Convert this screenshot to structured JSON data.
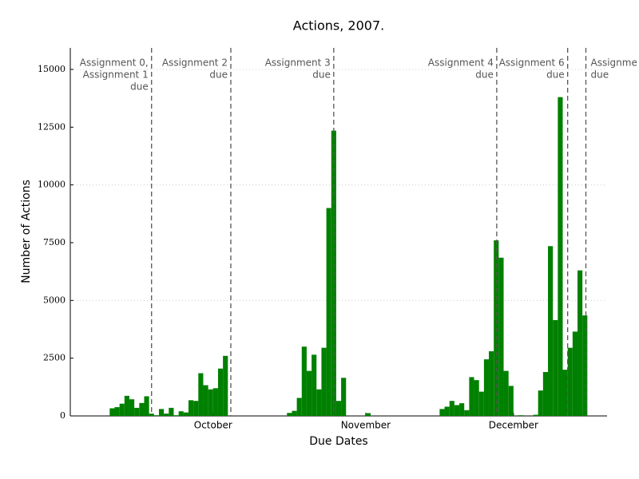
{
  "chart_data": {
    "type": "bar",
    "title": "Actions, 2007.",
    "x_label": "Due Dates",
    "y_label": "Number of Actions",
    "x": [
      253,
      254,
      255,
      256,
      257,
      258,
      259,
      260,
      261,
      262,
      263,
      264,
      265,
      266,
      267,
      268,
      269,
      270,
      271,
      272,
      273,
      274,
      275,
      276,
      289,
      290,
      291,
      292,
      293,
      294,
      295,
      296,
      297,
      298,
      299,
      300,
      305,
      320,
      321,
      322,
      323,
      324,
      325,
      326,
      327,
      328,
      329,
      330,
      331,
      332,
      333,
      334,
      336,
      339,
      340,
      341,
      342,
      343,
      344,
      345,
      346,
      347,
      348,
      349
    ],
    "values": [
      330,
      380,
      530,
      870,
      720,
      350,
      560,
      850,
      100,
      30,
      300,
      100,
      350,
      30,
      200,
      150,
      680,
      650,
      1850,
      1330,
      1150,
      1200,
      2050,
      2600,
      130,
      220,
      780,
      3000,
      1950,
      2650,
      1150,
      2950,
      9000,
      12350,
      650,
      1650,
      120,
      300,
      400,
      650,
      470,
      550,
      250,
      1680,
      1550,
      1050,
      2450,
      2800,
      7600,
      6850,
      1950,
      1300,
      30,
      50,
      1100,
      1900,
      7350,
      4150,
      13800,
      2000,
      2950,
      3650,
      6300,
      4350
    ],
    "color": "#008000",
    "xlim": [
      245,
      354
    ],
    "ylim": [
      0,
      16000
    ],
    "xticks": [
      {
        "value": 274,
        "label": "October"
      },
      {
        "value": 305,
        "label": "November"
      },
      {
        "value": 335,
        "label": "December"
      }
    ],
    "yticks": [
      0,
      2500,
      5000,
      7500,
      10000,
      12500,
      15000
    ],
    "grid_yticks": [
      5000,
      10000,
      15000
    ],
    "annotations": [
      {
        "x": 261.5,
        "lines": [
          "Assignment 0,",
          "Assignment 1",
          "due"
        ],
        "align": "right"
      },
      {
        "x": 277.6,
        "lines": [
          "Assignment 2",
          "due"
        ],
        "align": "right"
      },
      {
        "x": 298.5,
        "lines": [
          "Assignment 3",
          "due"
        ],
        "align": "right"
      },
      {
        "x": 331.6,
        "lines": [
          "Assignment 4",
          "due"
        ],
        "align": "right"
      },
      {
        "x": 346,
        "lines": [
          "Assignment 6",
          "due"
        ],
        "align": "right"
      },
      {
        "x": 349.7,
        "lines": [
          "Assignme",
          "due"
        ],
        "align": "left"
      }
    ]
  }
}
